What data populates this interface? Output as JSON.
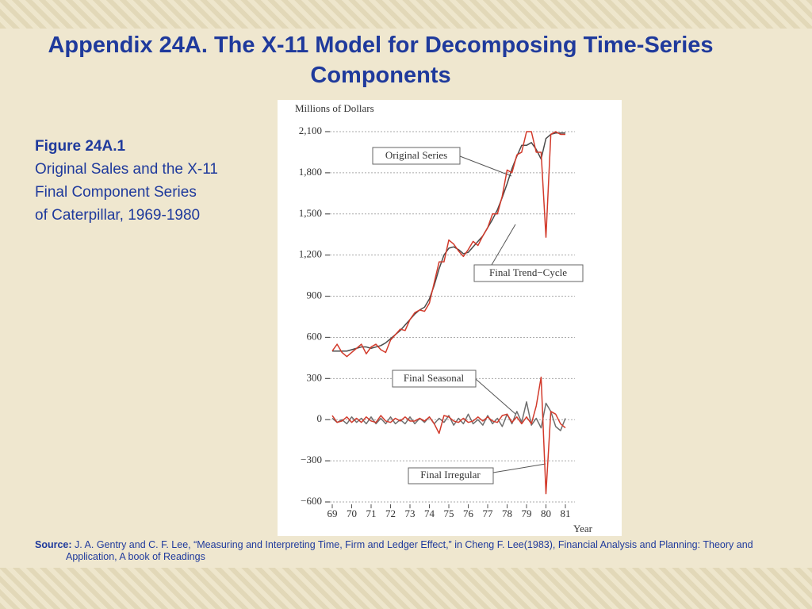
{
  "slide": {
    "title": "Appendix 24A. The X-11 Model for Decomposing Time-Series Components",
    "figure_label": "Figure 24A.1",
    "caption_lines": [
      "Original Sales and the X-11",
      "Final Component Series",
      "of Caterpillar, 1969-1980"
    ],
    "source_label": "Source:",
    "source_text": "J. A. Gentry and C. F. Lee, “Measuring and Interpreting Time, Firm and Ledger Effect,” in Cheng F. Lee(1983), Financial Analysis and Planning: Theory and Application, A book of Readings"
  },
  "chart_data": {
    "type": "line",
    "y_label": "Millions of Dollars",
    "x_label": "Year",
    "x": [
      69,
      69.25,
      69.5,
      69.75,
      70,
      70.25,
      70.5,
      70.75,
      71,
      71.25,
      71.5,
      71.75,
      72,
      72.25,
      72.5,
      72.75,
      73,
      73.25,
      73.5,
      73.75,
      74,
      74.25,
      74.5,
      74.75,
      75,
      75.25,
      75.5,
      75.75,
      76,
      76.25,
      76.5,
      76.75,
      77,
      77.25,
      77.5,
      77.75,
      78,
      78.25,
      78.5,
      78.75,
      79,
      79.25,
      79.5,
      79.75,
      80,
      80.25,
      80.5,
      80.75,
      81
    ],
    "xlim": [
      68.6,
      81.5
    ],
    "xticks": [
      69,
      70,
      71,
      72,
      73,
      74,
      75,
      76,
      77,
      78,
      79,
      80,
      81
    ],
    "ylim": [
      -650,
      2200
    ],
    "yticks": [
      {
        "value": -600,
        "label": "−600"
      },
      {
        "value": -300,
        "label": "−300"
      },
      0,
      300,
      600,
      900,
      {
        "value": 1200,
        "label": "1,200"
      },
      {
        "value": 1500,
        "label": "1,500"
      },
      {
        "value": 1800,
        "label": "1,800"
      },
      {
        "value": 2100,
        "label": "2,100"
      }
    ],
    "grid": true,
    "series": [
      {
        "name": "Original Series",
        "color": "#d23a2b",
        "values": [
          500,
          550,
          490,
          460,
          490,
          520,
          550,
          480,
          530,
          550,
          510,
          490,
          580,
          620,
          660,
          650,
          730,
          780,
          800,
          790,
          850,
          1000,
          1150,
          1150,
          1310,
          1280,
          1230,
          1190,
          1240,
          1300,
          1270,
          1340,
          1400,
          1500,
          1500,
          1630,
          1820,
          1800,
          1930,
          1950,
          2100,
          2100,
          1950,
          1950,
          1330,
          2080,
          2100,
          2080,
          2080
        ]
      },
      {
        "name": "Final Trend−Cycle",
        "color": "#4a4a4a",
        "values": [
          500,
          500,
          500,
          500,
          510,
          520,
          530,
          530,
          520,
          530,
          540,
          560,
          590,
          620,
          650,
          690,
          730,
          770,
          800,
          820,
          880,
          980,
          1100,
          1200,
          1250,
          1260,
          1240,
          1210,
          1220,
          1260,
          1300,
          1340,
          1400,
          1460,
          1530,
          1620,
          1720,
          1830,
          1920,
          2000,
          2000,
          2020,
          1970,
          1900,
          2050,
          2080,
          2090,
          2090,
          2090
        ]
      },
      {
        "name": "Final Seasonal",
        "color": "#6e6e6e",
        "values": [
          10,
          -20,
          0,
          -30,
          20,
          -20,
          10,
          -30,
          20,
          -30,
          10,
          -30,
          20,
          -30,
          0,
          -30,
          20,
          -30,
          10,
          -20,
          20,
          -30,
          10,
          -20,
          30,
          -40,
          10,
          -30,
          40,
          -30,
          0,
          -40,
          30,
          -30,
          10,
          -50,
          40,
          -30,
          60,
          -20,
          130,
          -40,
          10,
          -60,
          120,
          60,
          -50,
          -80,
          10
        ]
      },
      {
        "name": "Final Irregular",
        "color": "#d23a2b",
        "values": [
          30,
          -20,
          -10,
          20,
          -20,
          10,
          -20,
          20,
          -10,
          -20,
          30,
          -10,
          -20,
          10,
          -10,
          20,
          -10,
          -10,
          10,
          -10,
          20,
          -30,
          -100,
          30,
          20,
          -10,
          -20,
          10,
          -20,
          -10,
          20,
          -10,
          20,
          -10,
          -20,
          30,
          40,
          -20,
          20,
          -30,
          20,
          -30,
          100,
          310,
          -540,
          60,
          40,
          -30,
          -60
        ]
      }
    ]
  }
}
